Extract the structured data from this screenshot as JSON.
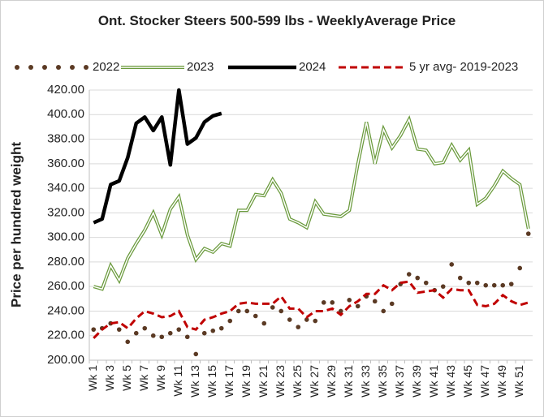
{
  "chart_data": {
    "type": "line",
    "title": "Ont. Stocker Steers 500-599 lbs - WeeklyAverage Price",
    "y_label": "Price per hundred weight",
    "categories": [
      "Wk 1",
      null,
      "Wk 3",
      null,
      "Wk 5",
      null,
      "Wk 7",
      null,
      "Wk 9",
      null,
      "Wk 11",
      null,
      "Wk 13",
      null,
      "Wk 15",
      null,
      "Wk 17",
      null,
      "Wk 19",
      null,
      "Wk 21",
      null,
      "Wk 23",
      null,
      "Wk 25",
      null,
      "Wk 27",
      null,
      "Wk 29",
      null,
      "Wk 31",
      null,
      "Wk 33",
      null,
      "Wk 35",
      null,
      "Wk 37",
      null,
      "Wk 39",
      null,
      "Wk 41",
      null,
      "Wk 43",
      null,
      "Wk 45",
      null,
      "Wk 47",
      null,
      "Wk 49",
      null,
      "Wk 51",
      null
    ],
    "ylim": [
      200,
      420
    ],
    "yticks": [
      {
        "value": 200,
        "label": "200.00"
      },
      {
        "value": 220,
        "label": "220.00"
      },
      {
        "value": 240,
        "label": "240.00"
      },
      {
        "value": 260,
        "label": "260.00"
      },
      {
        "value": 280,
        "label": "280.00"
      },
      {
        "value": 300,
        "label": "300.00"
      },
      {
        "value": 320,
        "label": "320.00"
      },
      {
        "value": 340,
        "label": "340.00"
      },
      {
        "value": 360,
        "label": "360.00"
      },
      {
        "value": 380,
        "label": "380.00"
      },
      {
        "value": 400,
        "label": "400.00"
      },
      {
        "value": 420,
        "label": "420.00"
      }
    ],
    "grid": true,
    "legend": "top",
    "series": [
      {
        "name": "2022",
        "color": "#5b3a24",
        "style": "dotted",
        "values": [
          225,
          226,
          230,
          225,
          215,
          222,
          226,
          220,
          219,
          222,
          225,
          219,
          205,
          222,
          224,
          226,
          232,
          240,
          240,
          236,
          230,
          243,
          240,
          233,
          227,
          233,
          232,
          247,
          247,
          240,
          249,
          244,
          252,
          248,
          240,
          246,
          262,
          270,
          267,
          263,
          257,
          260,
          278,
          267,
          263,
          263,
          261,
          261,
          261,
          262,
          275,
          303
        ]
      },
      {
        "name": "2023",
        "color": "#6a9a3c",
        "style": "double",
        "values": [
          260,
          258,
          277,
          265,
          283,
          295,
          306,
          320,
          302,
          323,
          333,
          302,
          282,
          291,
          288,
          295,
          293,
          322,
          322,
          335,
          334,
          347,
          336,
          315,
          312,
          308,
          329,
          319,
          318,
          317,
          322,
          360,
          394,
          360,
          388,
          373,
          383,
          396,
          372,
          371,
          360,
          361,
          375,
          363,
          371,
          327,
          332,
          342,
          354,
          348,
          343,
          307
        ]
      },
      {
        "name": "2024",
        "color": "#000000",
        "style": "solid",
        "values": [
          312,
          315,
          343,
          346,
          365,
          393,
          398,
          387,
          398,
          359,
          420,
          376,
          381,
          394,
          399,
          401,
          null,
          null,
          null,
          null,
          null,
          null,
          null,
          null,
          null,
          null,
          null,
          null,
          null,
          null,
          null,
          null,
          null,
          null,
          null,
          null,
          null,
          null,
          null,
          null,
          null,
          null,
          null,
          null,
          null,
          null,
          null,
          null,
          null,
          null,
          null,
          null
        ]
      },
      {
        "name": "5 yr avg- 2019-2023",
        "color": "#c00000",
        "style": "dashed",
        "values": [
          218,
          225,
          230,
          231,
          226,
          234,
          240,
          238,
          235,
          236,
          240,
          227,
          225,
          233,
          235,
          238,
          240,
          246,
          247,
          246,
          246,
          246,
          252,
          242,
          242,
          235,
          240,
          240,
          242,
          237,
          244,
          248,
          254,
          254,
          261,
          257,
          263,
          264,
          255,
          256,
          257,
          251,
          258,
          257,
          257,
          245,
          244,
          246,
          253,
          248,
          245,
          247
        ]
      }
    ]
  }
}
